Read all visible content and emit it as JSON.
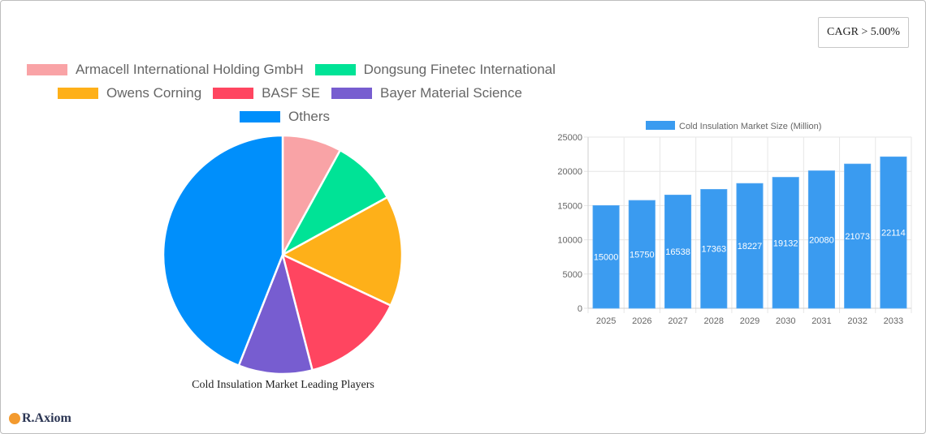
{
  "badge": {
    "cagr": "CAGR > 5.00%"
  },
  "pie": {
    "title": "Cold Insulation Market Leading Players",
    "legend": [
      {
        "label": "Armacell International Holding GmbH",
        "color": "#f9a3a6"
      },
      {
        "label": "Dongsung Finetec International",
        "color": "#00e396"
      },
      {
        "label": "Owens Corning",
        "color": "#feb019"
      },
      {
        "label": "BASF SE",
        "color": "#ff4560"
      },
      {
        "label": "Bayer Material Science",
        "color": "#775dd0"
      },
      {
        "label": "Others",
        "color": "#008ffb"
      }
    ]
  },
  "bar": {
    "legend_label": "Cold Insulation Market Size (Million)",
    "color": "#3a9bf0"
  },
  "logo": {
    "text": "R.Axiom"
  },
  "chart_data": [
    {
      "type": "pie",
      "title": "Cold Insulation Market Leading Players",
      "categories": [
        "Armacell International Holding GmbH",
        "Dongsung Finetec International",
        "Owens Corning",
        "BASF SE",
        "Bayer Material Science",
        "Others"
      ],
      "values": [
        8,
        9,
        15,
        14,
        10,
        44
      ],
      "colors": [
        "#f9a3a6",
        "#00e396",
        "#feb019",
        "#ff4560",
        "#775dd0",
        "#008ffb"
      ],
      "legend_position": "top"
    },
    {
      "type": "bar",
      "title": "",
      "legend": [
        "Cold Insulation Market Size (Million)"
      ],
      "categories": [
        "2025",
        "2026",
        "2027",
        "2028",
        "2029",
        "2030",
        "2031",
        "2032",
        "2033"
      ],
      "values": [
        15000,
        15750,
        16538,
        17363,
        18227,
        19132,
        20080,
        21073,
        22114
      ],
      "xlabel": "",
      "ylabel": "",
      "ylim": [
        0,
        25000
      ],
      "yticks": [
        0,
        5000,
        10000,
        15000,
        20000,
        25000
      ],
      "grid": true,
      "data_labels": true
    }
  ]
}
